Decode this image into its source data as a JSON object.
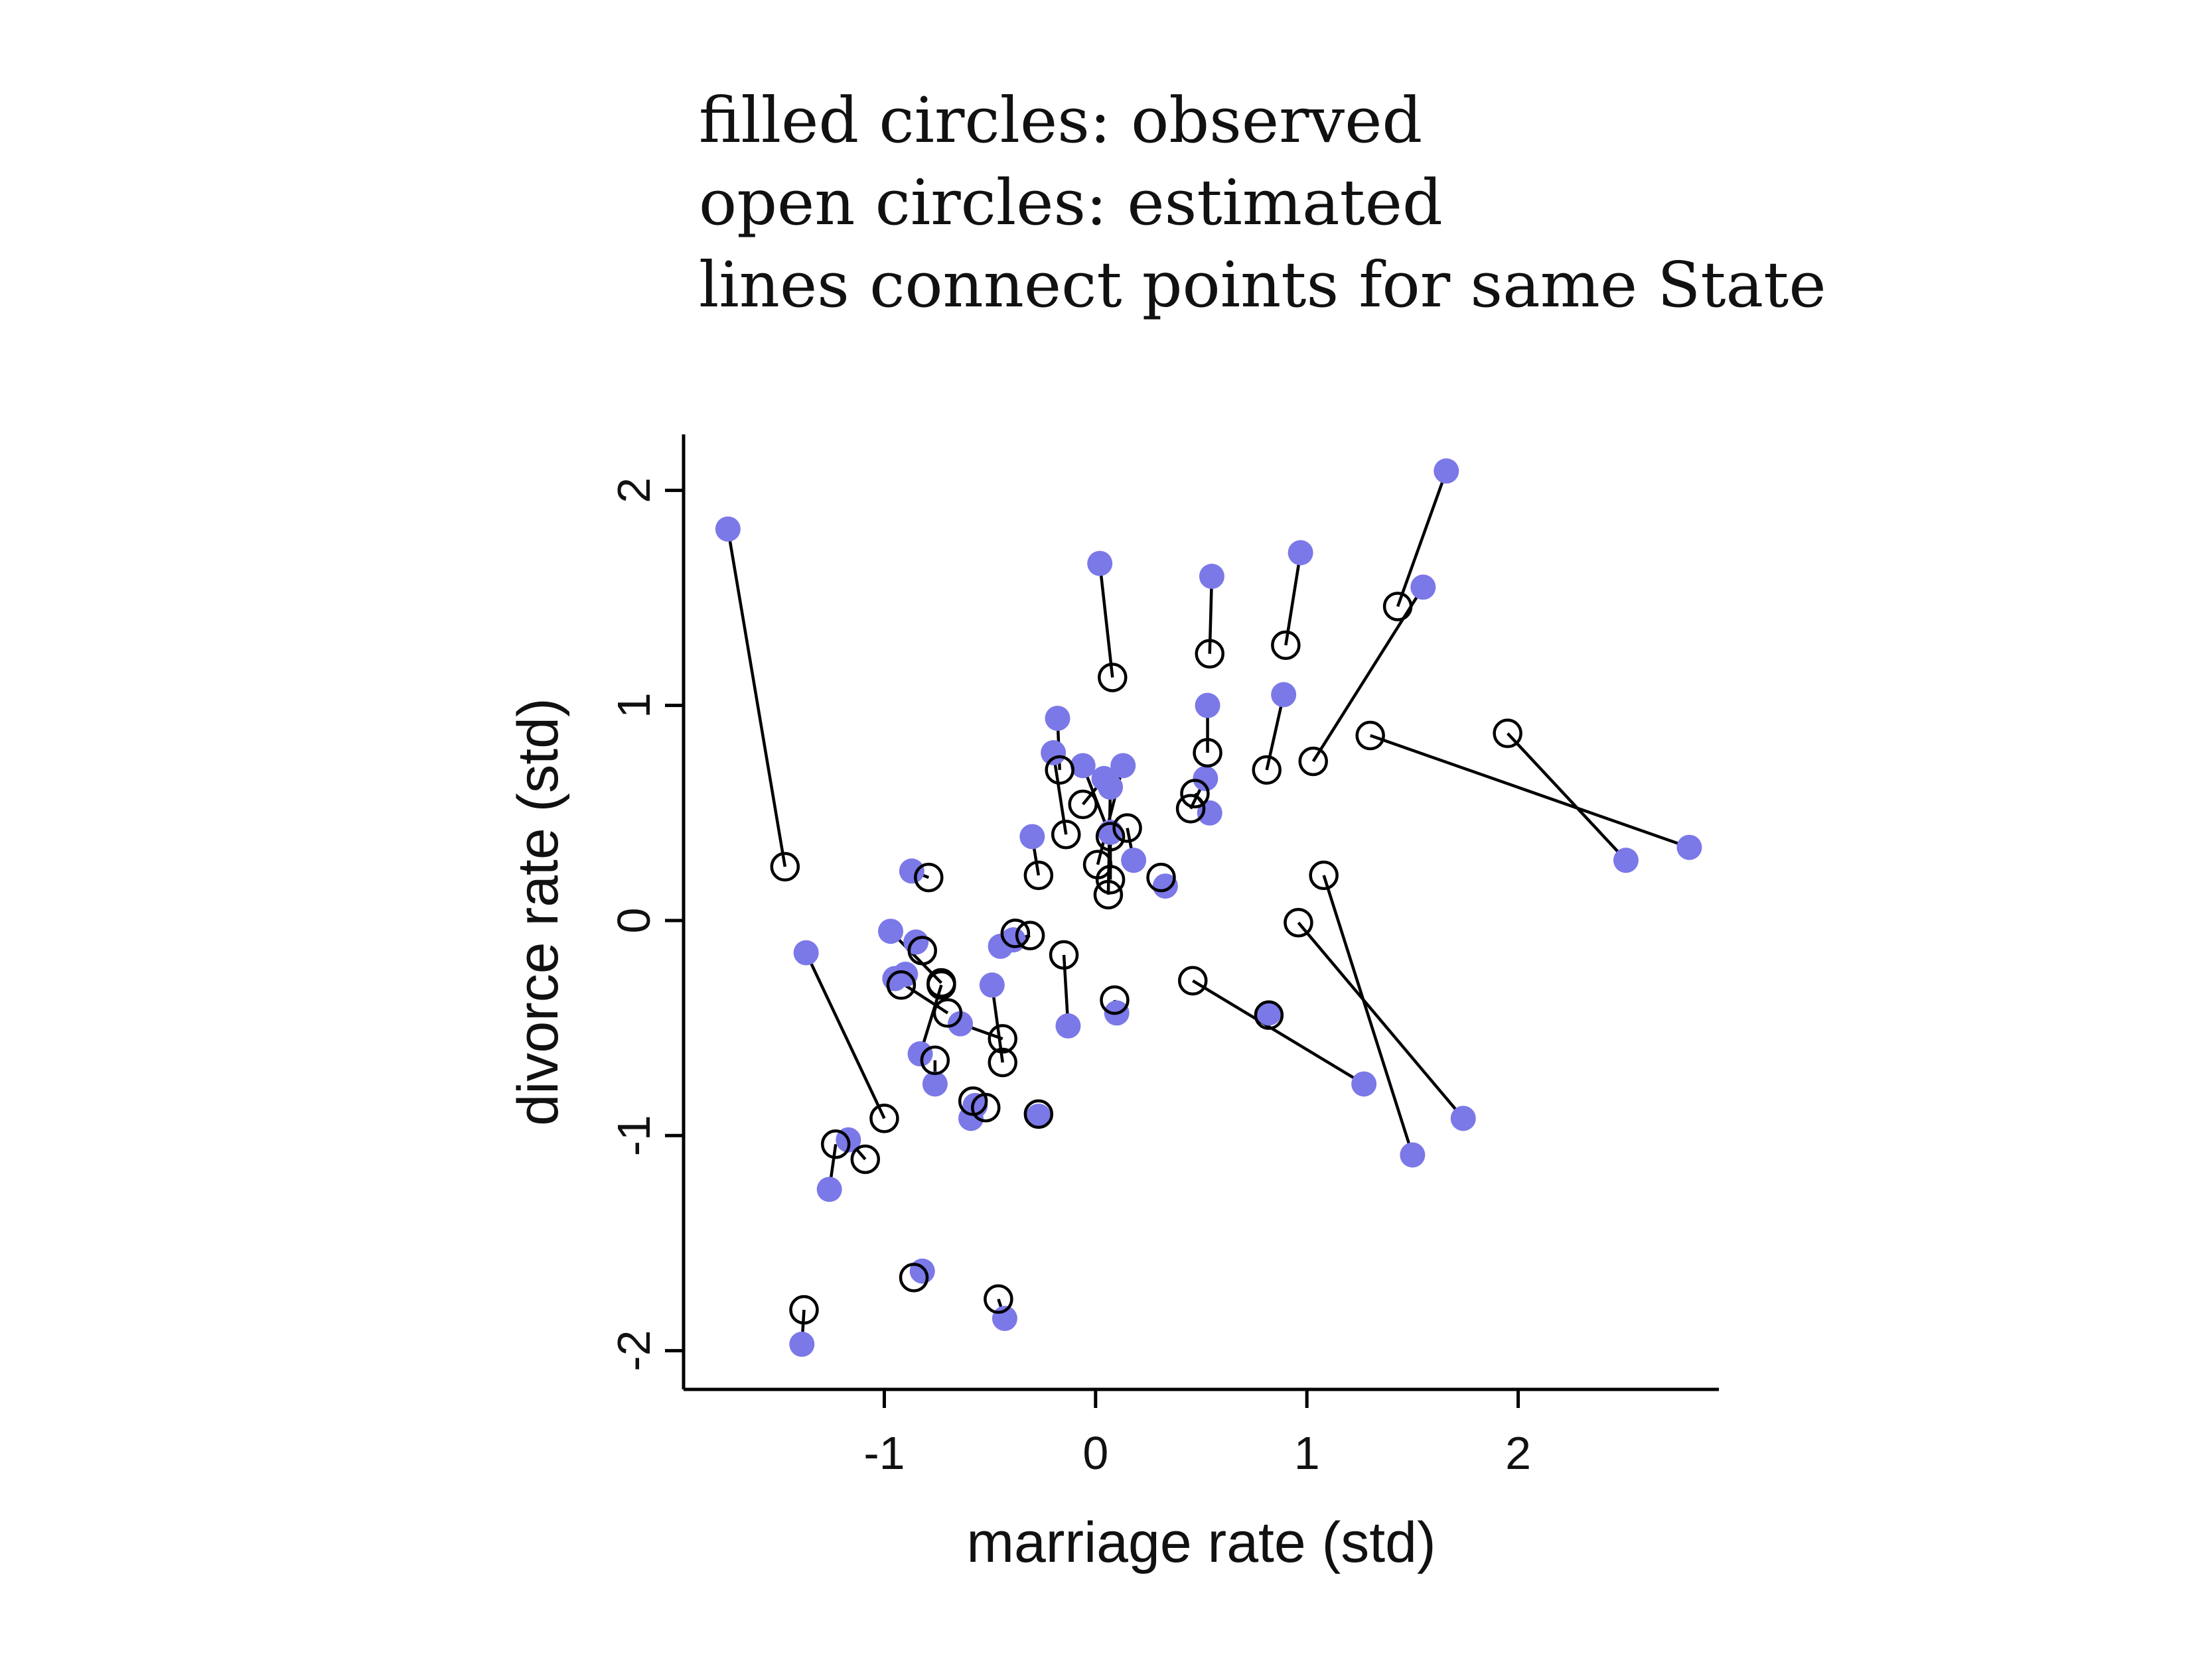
{
  "annotations": {
    "line1": "filled circles: observed",
    "line2": "open circles: estimated",
    "line3": "lines connect points for same State"
  },
  "chart_data": {
    "type": "scatter",
    "xlabel": "marriage rate (std)",
    "ylabel": "divorce rate (std)",
    "xlim": [
      -1.95,
      2.95
    ],
    "ylim": [
      -2.18,
      2.26
    ],
    "xticks": [
      -1,
      0,
      1,
      2
    ],
    "yticks": [
      -2,
      -1,
      0,
      1,
      2
    ],
    "colors": {
      "observed_fill": "#7B78E8",
      "estimated_stroke": "#000000",
      "line": "#000000",
      "axis": "#000000"
    },
    "series": [
      {
        "marker": "filled-circle",
        "x": [
          -1.74,
          0.02,
          1.66,
          0.55,
          0.97,
          1.55,
          0.53,
          0.89,
          -0.18,
          2.81,
          2.51,
          -0.87,
          -1.37,
          -1.26,
          -1.17,
          -0.85,
          -0.64,
          -0.9,
          -0.97,
          -0.45,
          -0.39,
          -0.49,
          -0.57,
          -0.27,
          -0.76,
          -0.59,
          -0.13,
          0.1,
          1.27,
          1.5,
          1.74,
          0.82,
          -0.3,
          0.04,
          0.18,
          -0.2,
          -0.06,
          0.13,
          0.07,
          0.54,
          0.52,
          0.07,
          0.33,
          -0.95,
          -0.83,
          -1.39,
          -0.82,
          -0.43
        ],
        "y": [
          1.82,
          1.66,
          2.09,
          1.6,
          1.71,
          1.55,
          1.0,
          1.05,
          0.94,
          0.34,
          0.28,
          0.23,
          -0.15,
          -1.25,
          -1.02,
          -0.1,
          -0.48,
          -0.25,
          -0.05,
          -0.12,
          -0.09,
          -0.3,
          -0.86,
          -0.91,
          -0.76,
          -0.92,
          -0.49,
          -0.43,
          -0.76,
          -1.09,
          -0.92,
          -0.43,
          0.39,
          0.66,
          0.28,
          0.78,
          0.72,
          0.72,
          0.62,
          0.5,
          0.66,
          0.41,
          0.16,
          -0.27,
          -0.62,
          -1.97,
          -1.63,
          -1.85
        ]
      },
      {
        "marker": "open-circle",
        "x": [
          -1.47,
          0.08,
          1.43,
          0.54,
          0.9,
          1.03,
          0.53,
          0.81,
          -0.17,
          1.3,
          1.95,
          -0.79,
          -1.0,
          -1.23,
          -1.09,
          -0.82,
          -0.44,
          -0.92,
          -0.73,
          -0.38,
          -0.31,
          -0.44,
          -0.52,
          -0.27,
          -0.76,
          -0.58,
          -0.15,
          0.09,
          0.46,
          1.08,
          0.96,
          0.82,
          -0.27,
          -0.06,
          0.15,
          -0.14,
          0.07,
          0.01,
          0.06,
          0.47,
          0.45,
          0.07,
          0.31,
          -0.7,
          -0.73,
          -1.38,
          -0.86,
          -0.46
        ],
        "y": [
          0.25,
          1.13,
          1.46,
          1.24,
          1.28,
          0.74,
          0.78,
          0.7,
          0.7,
          0.86,
          0.87,
          0.2,
          -0.92,
          -1.04,
          -1.11,
          -0.14,
          -0.55,
          -0.3,
          -0.29,
          -0.06,
          -0.07,
          -0.66,
          -0.87,
          -0.9,
          -0.65,
          -0.84,
          -0.16,
          -0.37,
          -0.28,
          0.21,
          -0.01,
          -0.44,
          0.21,
          0.54,
          0.43,
          0.4,
          0.39,
          0.26,
          0.12,
          0.59,
          0.52,
          0.19,
          0.2,
          -0.43,
          -0.3,
          -1.81,
          -1.66,
          -1.76
        ]
      }
    ]
  }
}
